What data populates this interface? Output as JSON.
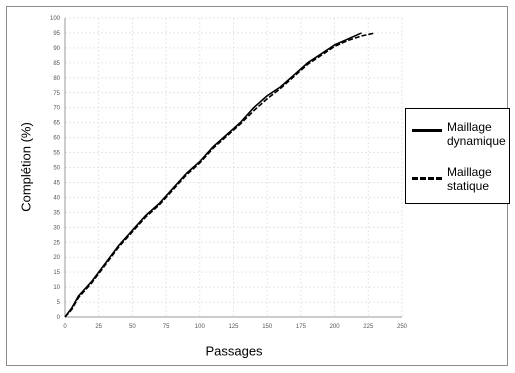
{
  "chart_data": {
    "type": "line",
    "xlabel": "Passages",
    "ylabel": "Complétion (%)",
    "xlim": [
      0,
      250
    ],
    "ylim": [
      0,
      100
    ],
    "xticks": [
      0,
      25,
      50,
      75,
      100,
      125,
      150,
      175,
      200,
      225,
      250
    ],
    "yticks": [
      0,
      5,
      10,
      15,
      20,
      25,
      30,
      35,
      40,
      45,
      50,
      55,
      60,
      65,
      70,
      75,
      80,
      85,
      90,
      95,
      100
    ],
    "grid": true,
    "legend_position": "right",
    "series": [
      {
        "name": "Maillage dynamique",
        "style": "solid",
        "color": "#000000",
        "x": [
          0,
          5,
          10,
          20,
          30,
          40,
          50,
          60,
          70,
          80,
          90,
          100,
          110,
          120,
          130,
          140,
          150,
          160,
          170,
          180,
          190,
          200,
          210,
          215,
          220
        ],
        "y": [
          0,
          3,
          7,
          12,
          18,
          24,
          29,
          34,
          38,
          43,
          48,
          52,
          57,
          61,
          65,
          70,
          74,
          77,
          81,
          85,
          88,
          91,
          93,
          94,
          95
        ]
      },
      {
        "name": "Maillage statique",
        "style": "dashed",
        "color": "#000000",
        "x": [
          0,
          5,
          10,
          20,
          30,
          40,
          50,
          60,
          70,
          80,
          90,
          100,
          110,
          120,
          130,
          140,
          150,
          160,
          170,
          180,
          190,
          200,
          210,
          220,
          225,
          230
        ],
        "y": [
          0,
          2.5,
          6.5,
          11.5,
          17.5,
          23.5,
          28.5,
          33.5,
          37.5,
          42.5,
          47.5,
          51.5,
          56.5,
          60.5,
          64.5,
          69,
          73,
          76.5,
          80.5,
          84.5,
          87.5,
          90.5,
          92.5,
          94,
          94.5,
          95
        ]
      }
    ]
  },
  "legend": {
    "items": [
      {
        "line1": "Maillage",
        "line2": "dynamique",
        "style": "solid"
      },
      {
        "line1": "Maillage",
        "line2": "statique",
        "style": "dashed"
      }
    ]
  }
}
